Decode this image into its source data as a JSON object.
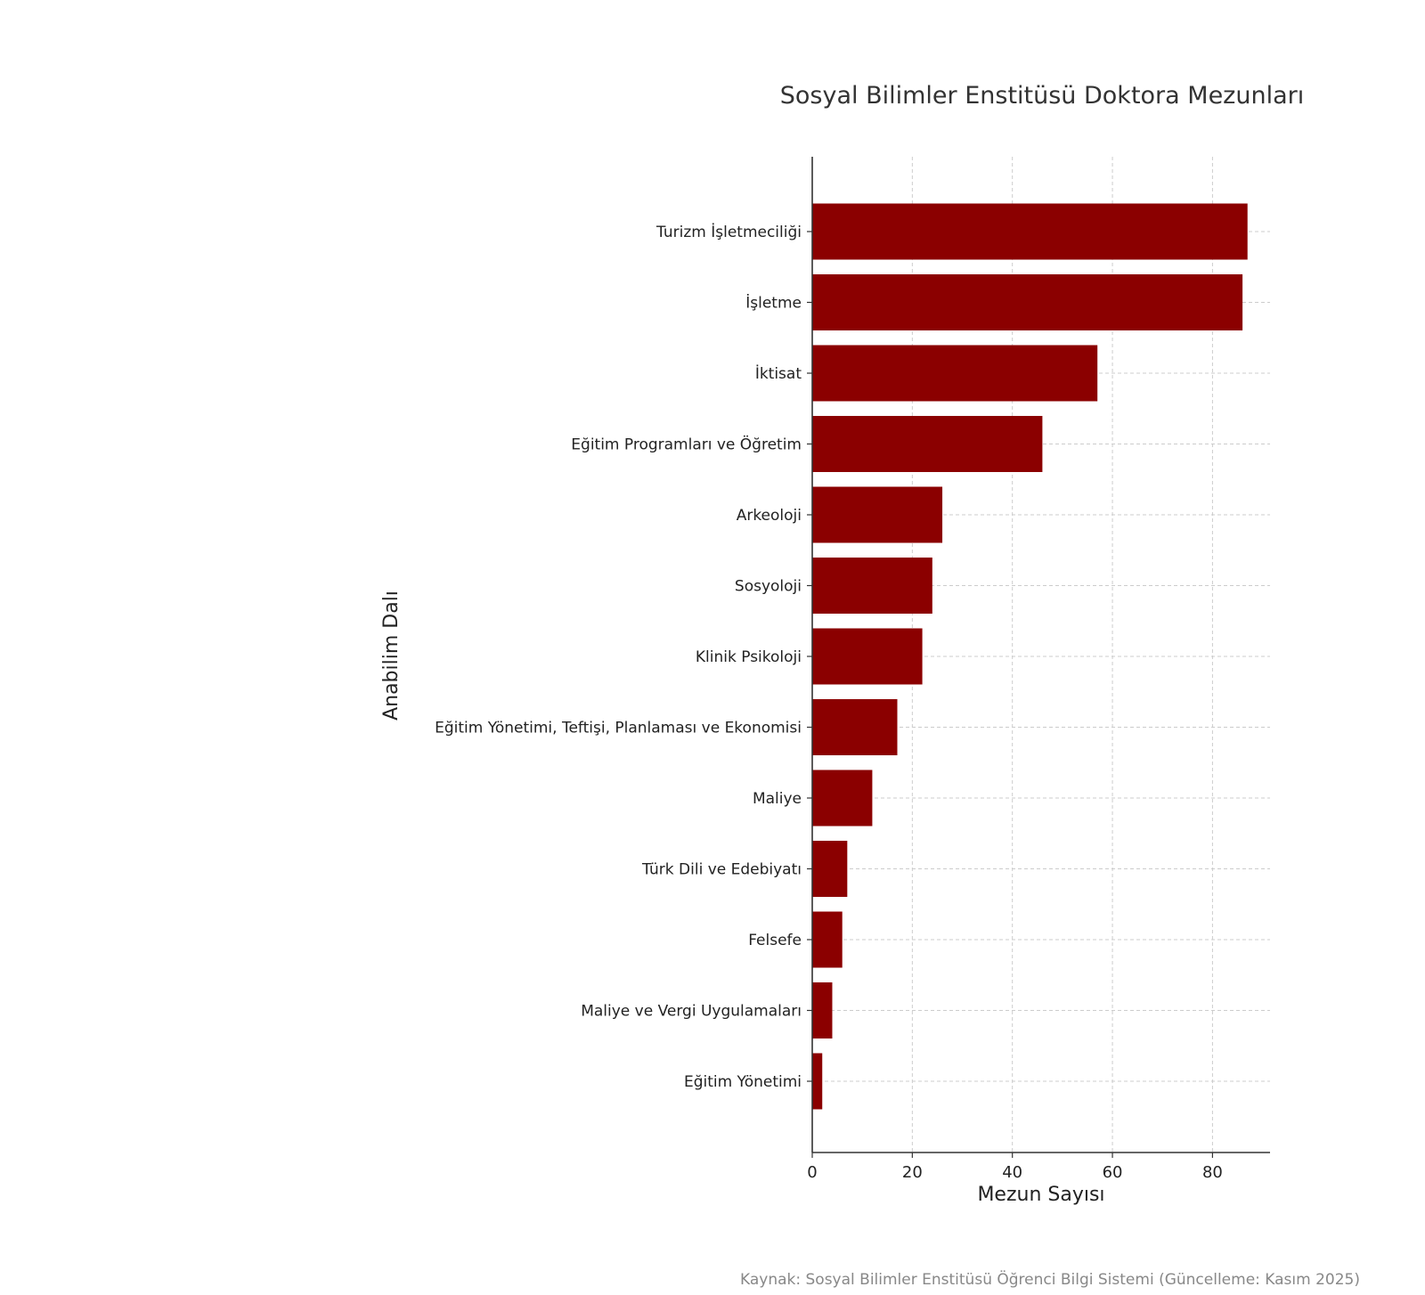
{
  "chart_data": {
    "type": "bar",
    "orientation": "horizontal",
    "title": "Sosyal Bilimler Enstitüsü Doktora Mezunları",
    "xlabel": "Mezun Sayısı",
    "ylabel": "Anabilim Dalı",
    "xlim": [
      0,
      91.5
    ],
    "xticks": [
      0,
      20,
      40,
      60,
      80
    ],
    "grid": true,
    "bar_color": "#8b0000",
    "categories": [
      "Turizm İşletmeciliği",
      "İşletme",
      "İktisat",
      "Eğitim Programları ve Öğretim",
      "Arkeoloji",
      "Sosyoloji ",
      "Klinik Psikoloji",
      "Eğitim Yönetimi, Teftişi, Planlaması ve Ekonomisi",
      "Maliye",
      "Türk Dili ve Edebiyatı",
      "Felsefe",
      "Maliye ve Vergi Uygulamaları",
      "Eğitim Yönetimi"
    ],
    "values": [
      87,
      86,
      57,
      46,
      26,
      24,
      22,
      17,
      12,
      7,
      6,
      4,
      2
    ]
  },
  "footer": {
    "source": "Kaynak: Sosyal Bilimler Enstitüsü Öğrenci Bilgi Sistemi (Güncelleme: Kasım 2025)"
  }
}
